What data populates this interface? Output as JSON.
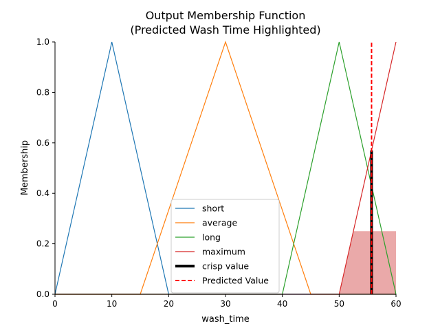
{
  "chart_data": {
    "type": "line",
    "title": "Output Membership Function",
    "subtitle": "(Predicted Wash Time Highlighted)",
    "xlabel": "wash_time",
    "ylabel": "Membership",
    "xlim": [
      0,
      60
    ],
    "ylim": [
      0,
      1.0
    ],
    "xticks": [
      "0",
      "10",
      "20",
      "30",
      "40",
      "50",
      "60"
    ],
    "yticks": [
      "0.0",
      "0.2",
      "0.4",
      "0.6",
      "0.8",
      "1.0"
    ],
    "grid": false,
    "legend_position": "bottom-center",
    "series": [
      {
        "name": "short",
        "color": "#1f77b4",
        "x": [
          0,
          10,
          20,
          60
        ],
        "y": [
          0,
          1,
          0,
          0
        ]
      },
      {
        "name": "average",
        "color": "#ff7f0e",
        "x": [
          0,
          15,
          30,
          45,
          60
        ],
        "y": [
          0,
          0,
          1,
          0,
          0
        ]
      },
      {
        "name": "long",
        "color": "#2ca02c",
        "x": [
          0,
          40,
          50,
          60
        ],
        "y": [
          0,
          0,
          1,
          0
        ]
      },
      {
        "name": "maximum",
        "color": "#d62728",
        "x": [
          0,
          50,
          60
        ],
        "y": [
          0,
          0,
          1
        ]
      }
    ],
    "shaded_region": {
      "color": "#e8a0a0",
      "x": [
        50,
        52.5,
        60,
        60,
        50
      ],
      "y": [
        0,
        0.25,
        0.25,
        0,
        0
      ]
    },
    "crisp_value": {
      "name": "crisp value",
      "x": 55.7,
      "y": [
        0,
        0.57
      ],
      "color": "#000000"
    },
    "predicted_value": {
      "name": "Predicted Value",
      "x": 55.7,
      "y": [
        0,
        1.0
      ],
      "color": "#ff0000"
    }
  }
}
